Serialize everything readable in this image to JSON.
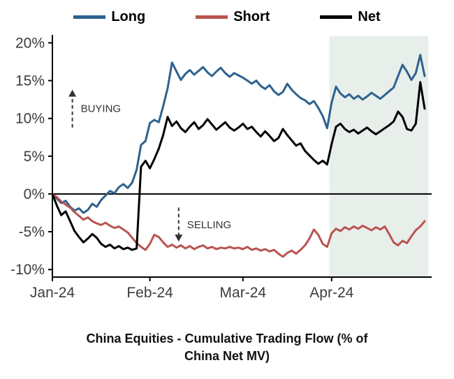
{
  "colors": {
    "long": "#2d628f",
    "short": "#b85450",
    "net": "#000000",
    "shade": "#e8eee9",
    "axis": "#000000",
    "tick_label": "#3d3d3d",
    "annotation": "#333333",
    "background": "#ffffff"
  },
  "chart_data": {
    "type": "line",
    "title": "China Equities - Cumulative Trading Flow (% of China Net MV)",
    "title_lines": [
      "China Equities - Cumulative Trading Flow (% of",
      "China Net MV)"
    ],
    "legend_position": "top",
    "x_tick_labels": [
      "Jan-24",
      "Feb-24",
      "Mar-24",
      "Apr-24"
    ],
    "x_tick_indices": [
      0,
      22,
      43,
      63
    ],
    "y_ticks": [
      20,
      15,
      10,
      5,
      0,
      -5,
      -10
    ],
    "y_tick_labels": [
      "20%",
      "15%",
      "10%",
      "5%",
      "0%",
      "-5%",
      "-10%"
    ],
    "ylim": [
      -11,
      20.5
    ],
    "grid": "off",
    "shaded_region": {
      "start_index": 63,
      "end_index": 84,
      "color": "#e8eee9"
    },
    "series": [
      {
        "name": "Long",
        "color": "#2d628f",
        "values": [
          0,
          -0.6,
          -1.2,
          -0.9,
          -1.7,
          -2.2,
          -1.9,
          -2.5,
          -2.1,
          -1.3,
          -1.7,
          -0.8,
          -0.2,
          0.4,
          0.1,
          0.9,
          1.3,
          0.8,
          1.5,
          3.2,
          6.5,
          7.0,
          9.4,
          9.8,
          9.5,
          11.6,
          14.0,
          17.4,
          16.2,
          15.1,
          15.9,
          16.4,
          15.8,
          16.3,
          16.8,
          16.1,
          15.6,
          16.2,
          16.7,
          16.0,
          15.5,
          16.0,
          15.7,
          15.4,
          15.0,
          14.6,
          15.0,
          14.3,
          13.9,
          14.4,
          13.6,
          13.1,
          13.5,
          14.6,
          13.8,
          13.2,
          12.7,
          12.4,
          11.9,
          12.3,
          11.4,
          10.3,
          8.7,
          12.1,
          14.2,
          13.3,
          12.8,
          13.2,
          12.6,
          13.0,
          12.5,
          12.9,
          13.4,
          13.0,
          12.6,
          13.1,
          13.6,
          14.1,
          15.6,
          17.1,
          16.2,
          15.1,
          16.0,
          18.4,
          15.6
        ]
      },
      {
        "name": "Short",
        "color": "#b85450",
        "values": [
          0,
          -0.4,
          -1.0,
          -1.4,
          -1.8,
          -2.4,
          -2.9,
          -3.4,
          -3.1,
          -3.6,
          -3.9,
          -4.1,
          -3.8,
          -4.2,
          -4.5,
          -4.3,
          -4.7,
          -5.1,
          -5.8,
          -6.5,
          -7.0,
          -7.4,
          -6.6,
          -5.4,
          -5.7,
          -6.4,
          -7.0,
          -6.7,
          -7.1,
          -6.8,
          -7.2,
          -6.9,
          -7.3,
          -7.0,
          -6.8,
          -7.2,
          -7.0,
          -7.3,
          -7.1,
          -7.2,
          -7.0,
          -7.2,
          -7.1,
          -7.3,
          -7.0,
          -7.4,
          -7.2,
          -7.5,
          -7.3,
          -7.6,
          -7.4,
          -7.9,
          -8.3,
          -7.8,
          -7.5,
          -7.9,
          -7.4,
          -6.8,
          -5.9,
          -4.7,
          -5.4,
          -6.6,
          -7.0,
          -5.2,
          -4.6,
          -4.9,
          -4.4,
          -4.7,
          -4.3,
          -4.6,
          -4.2,
          -4.5,
          -4.8,
          -4.4,
          -4.7,
          -4.3,
          -5.3,
          -6.4,
          -6.8,
          -6.2,
          -6.5,
          -5.6,
          -4.8,
          -4.3,
          -3.6
        ]
      },
      {
        "name": "Net",
        "color": "#000000",
        "values": [
          0,
          -1.5,
          -2.8,
          -2.3,
          -3.6,
          -4.9,
          -5.7,
          -6.4,
          -5.9,
          -5.3,
          -5.8,
          -6.6,
          -7.0,
          -6.7,
          -7.2,
          -6.9,
          -7.3,
          -7.1,
          -7.4,
          -7.2,
          3.6,
          4.4,
          3.4,
          4.6,
          6.0,
          7.8,
          10.2,
          9.0,
          9.6,
          8.7,
          8.2,
          8.9,
          9.5,
          8.6,
          9.1,
          9.9,
          9.2,
          8.5,
          9.0,
          9.5,
          8.8,
          8.4,
          8.8,
          9.3,
          8.6,
          8.9,
          8.2,
          7.6,
          8.3,
          7.7,
          7.0,
          7.4,
          8.6,
          7.8,
          7.1,
          6.4,
          6.7,
          5.7,
          5.1,
          4.5,
          4.0,
          4.4,
          3.9,
          6.6,
          8.9,
          9.3,
          8.6,
          8.2,
          8.5,
          8.0,
          8.4,
          8.8,
          8.3,
          7.9,
          8.3,
          8.7,
          9.1,
          9.6,
          10.9,
          10.2,
          8.6,
          8.4,
          9.3,
          14.8,
          11.3
        ]
      }
    ],
    "annotations": [
      {
        "text": "BUYING",
        "direction": "up",
        "x_index": 4.5,
        "y_tail": 8.8,
        "y_tip": 13.8
      },
      {
        "text": "SELLING",
        "direction": "down",
        "x_index": 28.5,
        "y_tail": -1.8,
        "y_tip": -6.3
      }
    ]
  }
}
